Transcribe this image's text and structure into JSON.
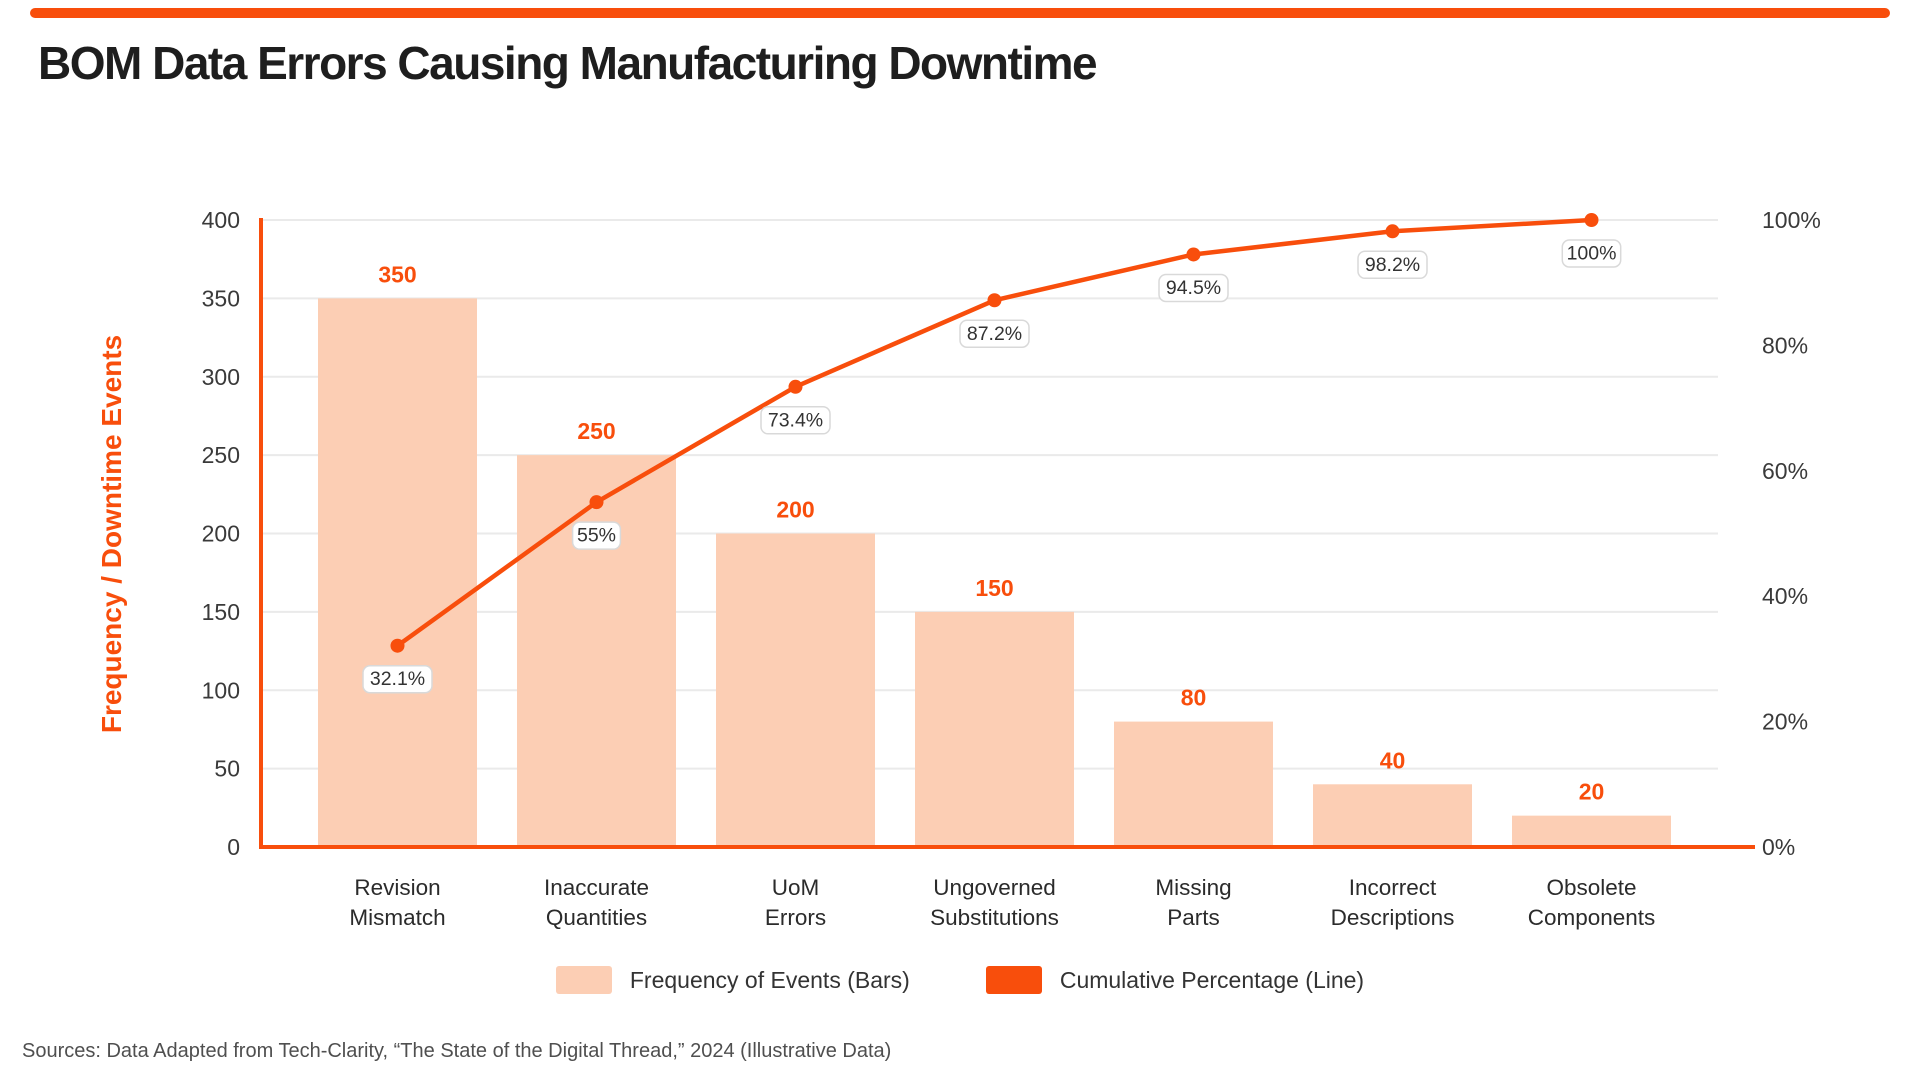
{
  "page": {
    "title": "BOM Data Errors Causing Manufacturing Downtime",
    "source_note": "Sources: Data Adapted from Tech-Clarity, “The State of the Digital Thread,” 2024 (Illustrative Data)"
  },
  "colors": {
    "accent": "#F84E0C",
    "bar_fill": "#FCCEB4",
    "grid": "#EAEAEA",
    "tick_text": "#3A3A3A",
    "category_text": "#2B2B2B",
    "title_text": "#1E1E1E",
    "point_box_fill": "#FFFFFF",
    "point_box_border": "#D9D9D9",
    "point_box_text": "#333333",
    "legend_text": "#333333",
    "source_text": "#4F4F4F"
  },
  "legend": {
    "items": [
      {
        "label": "Frequency of Events (Bars)",
        "swatch": "bar_fill"
      },
      {
        "label": "Cumulative Percentage (Line)",
        "swatch": "accent"
      }
    ]
  },
  "chart_data": {
    "type": "pareto (bar + cumulative line)",
    "title": "BOM Data Errors Causing Manufacturing Downtime",
    "categories": [
      "Revision Mismatch",
      "Inaccurate Quantities",
      "UoM Errors",
      "Ungoverned Substitutions",
      "Missing Parts",
      "Incorrect Descriptions",
      "Obsolete Components"
    ],
    "category_label_lines": [
      [
        "Revision",
        "Mismatch"
      ],
      [
        "Inaccurate",
        "Quantities"
      ],
      [
        "UoM",
        "Errors"
      ],
      [
        "Ungoverned",
        "Substitutions"
      ],
      [
        "Missing",
        "Parts"
      ],
      [
        "Incorrect",
        "Descriptions"
      ],
      [
        "Obsolete",
        "Components"
      ]
    ],
    "series": [
      {
        "name": "Frequency of Events (Bars)",
        "type": "bar",
        "values": [
          350,
          250,
          200,
          150,
          80,
          40,
          20
        ]
      },
      {
        "name": "Cumulative Percentage (Line)",
        "type": "line",
        "values": [
          32.1,
          55,
          73.4,
          87.2,
          94.5,
          98.2,
          100
        ]
      }
    ],
    "bar_value_labels": [
      "350",
      "250",
      "200",
      "150",
      "80",
      "40",
      "20"
    ],
    "cumulative_point_labels": [
      "32.1%",
      "55%",
      "73.4%",
      "87.2%",
      "94.5%",
      "98.2%",
      "100%"
    ],
    "left_axis": {
      "label": "Frequency / Downtime Events",
      "range": [
        0,
        400
      ],
      "tick_labels": [
        "0",
        "50",
        "100",
        "150",
        "200",
        "250",
        "300",
        "350",
        "400"
      ]
    },
    "right_axis": {
      "range": [
        0,
        100
      ],
      "tick_labels": [
        "0%",
        "20%",
        "40%",
        "60%",
        "80%",
        "100%"
      ]
    },
    "grid": "horizontal",
    "legend_position": "bottom-center"
  }
}
